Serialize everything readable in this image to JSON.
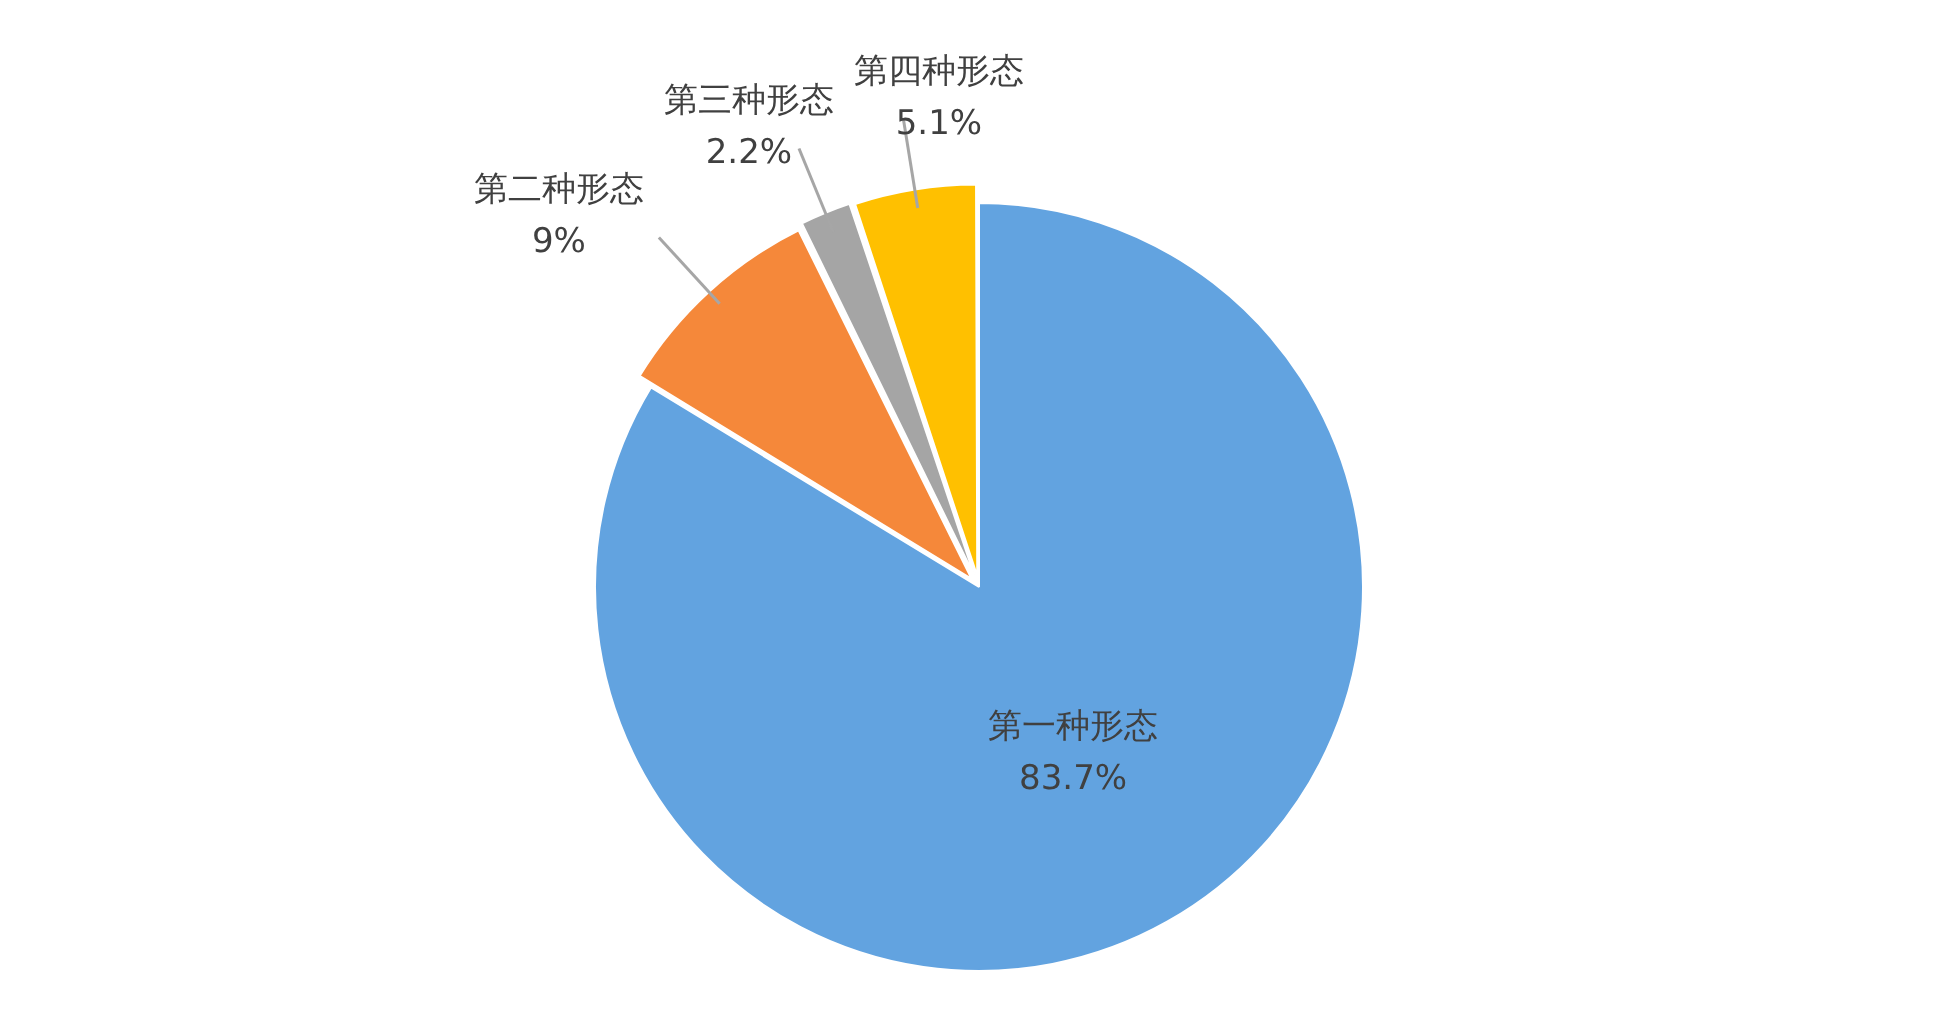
{
  "chart_data": {
    "type": "pie",
    "categories": [
      "第一种形态",
      "第二种形态",
      "第三种形态",
      "第四种形态"
    ],
    "values": [
      83.7,
      9,
      2.2,
      5.1
    ],
    "value_labels": [
      "83.7%",
      "9%",
      "2.2%",
      "5.1%"
    ],
    "colors": [
      "#62a3e0",
      "#f5883a",
      "#a5a5a5",
      "#ffc000"
    ],
    "legend": false
  }
}
